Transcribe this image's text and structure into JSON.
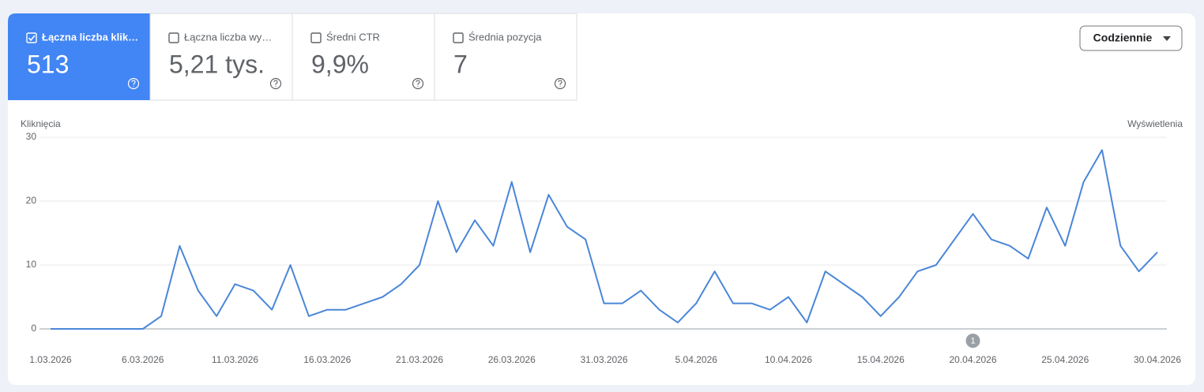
{
  "metrics": [
    {
      "label": "Łączna liczba klik…",
      "value": "513",
      "selected": true
    },
    {
      "label": "Łączna liczba wy…",
      "value": "5,21 tys.",
      "selected": false
    },
    {
      "label": "Średni CTR",
      "value": "9,9%",
      "selected": false
    },
    {
      "label": "Średnia pozycja",
      "value": "7",
      "selected": false
    }
  ],
  "dropdown": "Codziennie",
  "chart_data": {
    "type": "line",
    "y_label": "Kliknięcia",
    "y2_label": "Wyświetlenia",
    "categories": [
      "1.03.2026",
      null,
      null,
      null,
      null,
      "6.03.2026",
      null,
      null,
      null,
      null,
      "11.03.2026",
      null,
      null,
      null,
      null,
      "16.03.2026",
      null,
      null,
      null,
      null,
      "21.03.2026",
      null,
      null,
      null,
      null,
      "26.03.2026",
      null,
      null,
      null,
      null,
      "31.03.2026",
      null,
      null,
      null,
      null,
      "5.04.2026",
      null,
      null,
      null,
      null,
      "10.04.2026",
      null,
      null,
      null,
      null,
      "15.04.2026",
      null,
      null,
      null,
      null,
      "20.04.2026",
      null,
      null,
      null,
      null,
      "25.04.2026",
      null,
      null,
      null,
      null,
      "30.04.2026"
    ],
    "series": [
      {
        "color": "#4a86d8",
        "values": [
          0,
          0,
          0,
          0,
          0,
          0,
          2,
          13,
          6,
          2,
          7,
          6,
          3,
          10,
          2,
          3,
          3,
          4,
          5,
          7,
          10,
          20,
          12,
          17,
          13,
          23,
          12,
          21,
          16,
          14,
          4,
          4,
          6,
          3,
          1,
          4,
          9,
          4,
          4,
          3,
          5,
          1,
          9,
          7,
          5,
          2,
          5,
          9,
          10,
          14,
          18,
          14,
          13,
          11,
          19,
          13,
          23,
          28,
          13,
          9,
          12
        ]
      }
    ],
    "ylim": [
      0,
      30
    ],
    "yticks": [
      0,
      10,
      20,
      30
    ],
    "grid": true,
    "annotations": [
      {
        "x": "20.04.2026",
        "label": "1"
      }
    ]
  }
}
